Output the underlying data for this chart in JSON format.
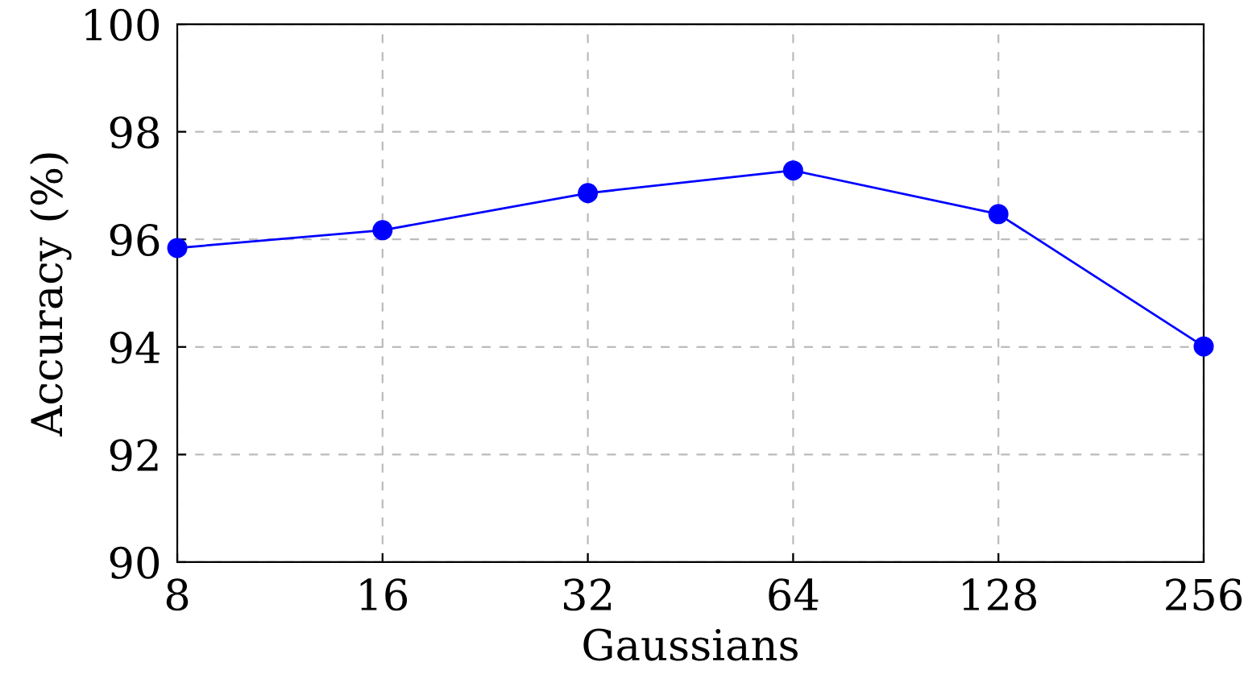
{
  "chart_data": {
    "type": "line",
    "xlabel": "Gaussians",
    "ylabel": "Accuracy (%)",
    "x": [
      8,
      16,
      32,
      64,
      128,
      256
    ],
    "series": [
      {
        "color": "#0000ff",
        "values": [
          95.84,
          96.17,
          96.86,
          97.28,
          96.47,
          94.01
        ]
      }
    ],
    "log": "x",
    "xlim": [
      8,
      256
    ],
    "xticks": [
      8,
      16,
      32,
      64,
      128,
      256
    ],
    "ylim": [
      90,
      100
    ],
    "yticks": [
      90,
      92,
      94,
      96,
      98,
      100
    ],
    "grid": true,
    "marker": "circle",
    "line_style": "solid"
  }
}
